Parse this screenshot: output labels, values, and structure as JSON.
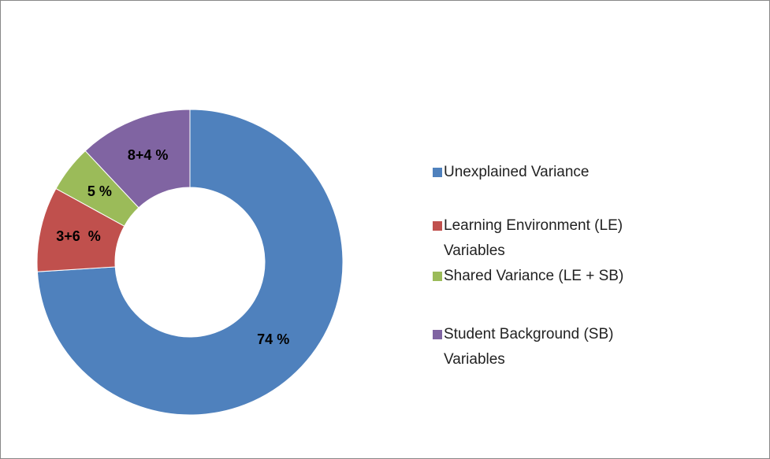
{
  "chart_data": {
    "type": "donut",
    "categories": [
      "Unexplained Variance",
      "Learning Environment (LE) Variables",
      "Shared Variance (LE + SB)",
      "Student Background (SB) Variables"
    ],
    "values": [
      74,
      9,
      5,
      12
    ],
    "value_labels": [
      "74 %",
      "3+6  %",
      "5 %",
      "8+4 %"
    ],
    "colors": [
      "#4f81bd",
      "#c0504d",
      "#9bbb59",
      "#8064a2"
    ],
    "legend": "right"
  }
}
